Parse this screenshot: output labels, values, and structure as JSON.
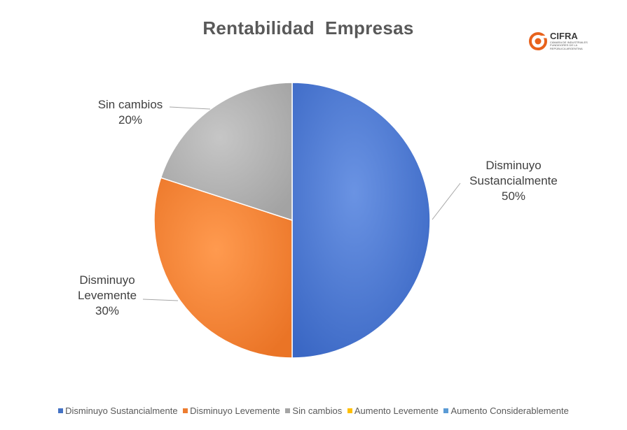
{
  "chart_data": {
    "type": "pie",
    "title": "Rentabilidad  Empresas",
    "categories": [
      "Disminuyo Sustancialmente",
      "Disminuyo Levemente",
      "Sin cambios",
      "Aumento Levemente",
      "Aumento Considerablemente"
    ],
    "values": [
      50,
      30,
      20,
      0,
      0
    ],
    "colors": [
      "#4472c4",
      "#ed7d31",
      "#a5a5a5",
      "#ffc000",
      "#5b9bd5"
    ],
    "data_labels": [
      [
        "Disminuyo",
        "Sustancialmente",
        "50%"
      ],
      [
        "Disminuyo",
        "Levemente",
        "30%"
      ],
      [
        "Sin cambios",
        "20%"
      ]
    ],
    "legend_position": "bottom"
  },
  "logo": {
    "name": "CIFRA",
    "subtitle_lines": [
      "CÁMARA DE INDUSTRIALES",
      "FUNDIDORES DE LA",
      "REPÚBLICA ARGENTINA"
    ],
    "color": "#e8621c"
  }
}
